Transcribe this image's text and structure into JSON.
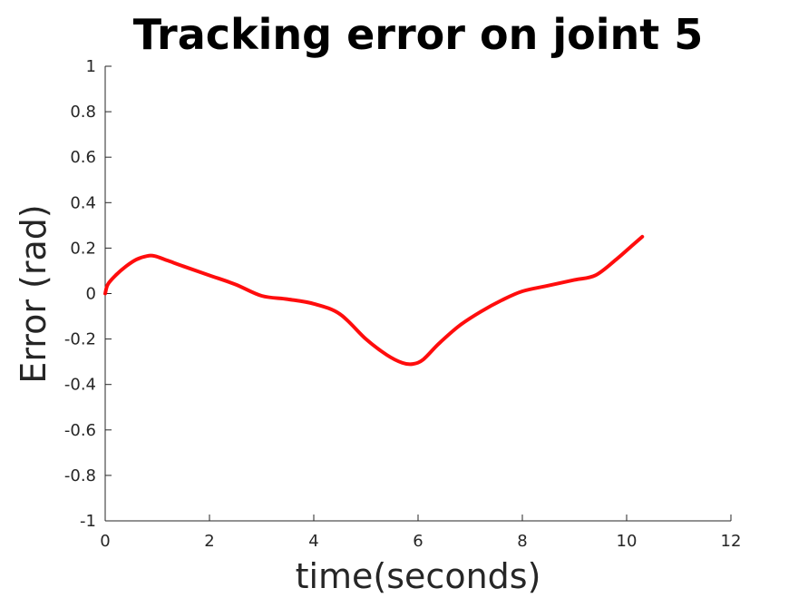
{
  "chart_data": {
    "type": "line",
    "title": "Tracking error on joint 5",
    "xlabel": "time(seconds)",
    "ylabel": "Error (rad)",
    "xlim": [
      0,
      12
    ],
    "ylim": [
      -1,
      1
    ],
    "xticks": [
      0,
      2,
      4,
      6,
      8,
      10,
      12
    ],
    "xtick_labels": [
      "0",
      "2",
      "4",
      "6",
      "8",
      "10",
      "12"
    ],
    "yticks": [
      -1,
      -0.8,
      -0.6,
      -0.4,
      -0.2,
      0,
      0.2,
      0.4,
      0.6,
      0.8,
      1
    ],
    "ytick_labels": [
      "-1",
      "-0.8",
      "-0.6",
      "-0.4",
      "-0.2",
      "0",
      "0.2",
      "0.4",
      "0.6",
      "0.8",
      "1"
    ],
    "grid": false,
    "series": [
      {
        "color": "#ff0000",
        "x": [
          0,
          0.05,
          0.2,
          0.4,
          0.6,
          0.8,
          0.95,
          1.2,
          1.5,
          2.0,
          2.5,
          3.0,
          3.5,
          4.0,
          4.5,
          5.0,
          5.4,
          5.7,
          5.9,
          6.1,
          6.4,
          6.8,
          7.2,
          7.6,
          8.0,
          8.5,
          9.0,
          9.4,
          9.8,
          10.1,
          10.3
        ],
        "y": [
          0.0,
          0.04,
          0.08,
          0.12,
          0.15,
          0.165,
          0.165,
          0.145,
          0.12,
          0.08,
          0.04,
          -0.01,
          -0.025,
          -0.045,
          -0.09,
          -0.2,
          -0.27,
          -0.305,
          -0.31,
          -0.29,
          -0.22,
          -0.14,
          -0.08,
          -0.03,
          0.01,
          0.035,
          0.06,
          0.08,
          0.15,
          0.21,
          0.25
        ]
      }
    ]
  }
}
